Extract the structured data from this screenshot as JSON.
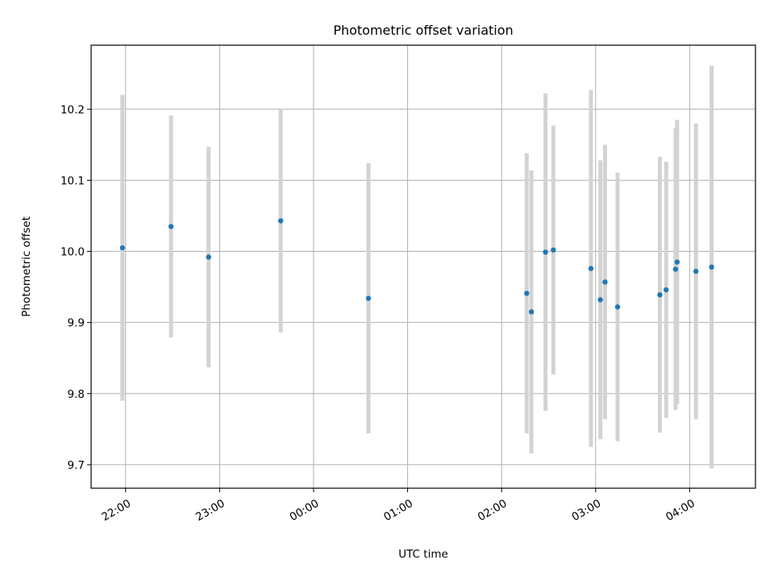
{
  "chart_data": {
    "type": "scatter",
    "title": "Photometric offset variation",
    "xlabel": "UTC time",
    "ylabel": "Photometric offset",
    "xlim": [
      "21:38",
      "04:42"
    ],
    "ylim": [
      9.667,
      10.29
    ],
    "grid": true,
    "x_ticks": [
      {
        "time": "22:00",
        "label": "22:00"
      },
      {
        "time": "23:00",
        "label": "23:00"
      },
      {
        "time": "00:00",
        "label": "00:00"
      },
      {
        "time": "01:00",
        "label": "01:00"
      },
      {
        "time": "02:00",
        "label": "02:00"
      },
      {
        "time": "03:00",
        "label": "03:00"
      },
      {
        "time": "04:00",
        "label": "04:00"
      }
    ],
    "y_ticks": [
      {
        "value": 9.7,
        "label": "9.7"
      },
      {
        "value": 9.8,
        "label": "9.8"
      },
      {
        "value": 9.9,
        "label": "9.9"
      },
      {
        "value": 10.0,
        "label": "10.0"
      },
      {
        "value": 10.1,
        "label": "10.1"
      },
      {
        "value": 10.2,
        "label": "10.2"
      }
    ],
    "marker_color": "#1f77b4",
    "errorbar_color": "#d3d3d3",
    "points": [
      {
        "time": "21:58",
        "y": 10.005,
        "err": 0.215
      },
      {
        "time": "22:29",
        "y": 10.035,
        "err": 0.156
      },
      {
        "time": "22:53",
        "y": 9.992,
        "err": 0.155
      },
      {
        "time": "23:39",
        "y": 10.043,
        "err": 0.157
      },
      {
        "time": "00:35",
        "y": 9.934,
        "err": 0.19
      },
      {
        "time": "02:16",
        "y": 9.941,
        "err": 0.197
      },
      {
        "time": "02:19",
        "y": 9.915,
        "err": 0.199
      },
      {
        "time": "02:28",
        "y": 9.999,
        "err": 0.223
      },
      {
        "time": "02:33",
        "y": 10.002,
        "err": 0.175
      },
      {
        "time": "02:57",
        "y": 9.976,
        "err": 0.251
      },
      {
        "time": "03:03",
        "y": 9.932,
        "err": 0.196
      },
      {
        "time": "03:06",
        "y": 9.957,
        "err": 0.193
      },
      {
        "time": "03:14",
        "y": 9.922,
        "err": 0.189
      },
      {
        "time": "03:41",
        "y": 9.939,
        "err": 0.194
      },
      {
        "time": "03:45",
        "y": 9.946,
        "err": 0.18
      },
      {
        "time": "03:51",
        "y": 9.975,
        "err": 0.198
      },
      {
        "time": "03:52",
        "y": 9.985,
        "err": 0.2
      },
      {
        "time": "04:04",
        "y": 9.972,
        "err": 0.208
      },
      {
        "time": "04:14",
        "y": 9.978,
        "err": 0.283
      }
    ]
  }
}
